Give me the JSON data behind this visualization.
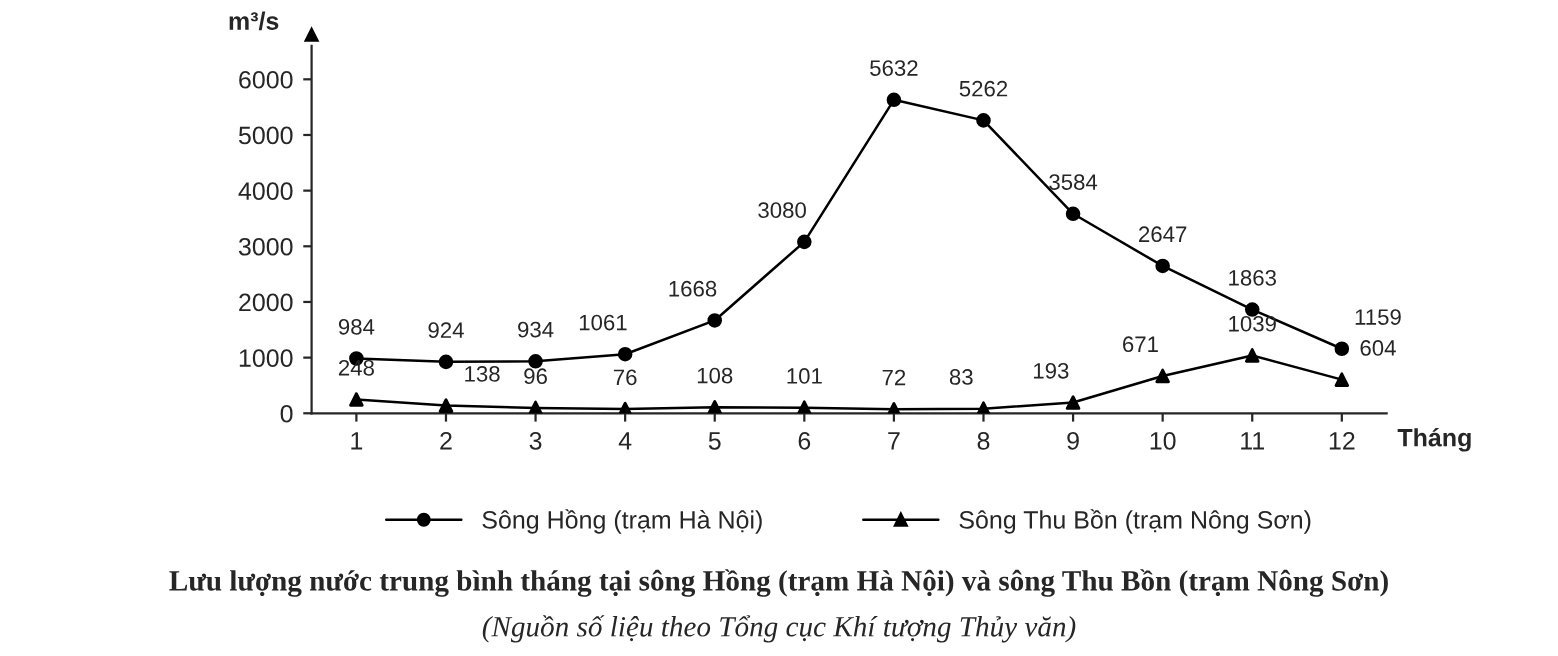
{
  "chart_data": {
    "type": "line",
    "title": "Lưu lượng nước trung bình tháng tại sông Hồng (trạm Hà Nội) và sông Thu Bồn (trạm Nông Sơn)",
    "xlabel": "Tháng",
    "ylabel": "m³/s",
    "annotations": [
      "(Nguồn số liệu theo Tổng cục Khí tượng Thủy văn)"
    ],
    "categories": [
      "1",
      "2",
      "3",
      "4",
      "5",
      "6",
      "7",
      "8",
      "9",
      "10",
      "11",
      "12"
    ],
    "series": [
      {
        "name": "Sông Hồng (trạm Hà Nội)",
        "color": "#000000",
        "marker": "circle",
        "values": [
          984,
          924,
          934,
          1061,
          1668,
          3080,
          5632,
          5262,
          3584,
          2647,
          1863,
          1159
        ]
      },
      {
        "name": "Sông Thu Bồn (trạm Nông Sơn)",
        "color": "#000000",
        "marker": "triangle",
        "values": [
          248,
          138,
          96,
          76,
          108,
          101,
          72,
          83,
          193,
          671,
          1039,
          604
        ]
      }
    ],
    "ylim": [
      0,
      6600
    ],
    "yticks": [
      0,
      1000,
      2000,
      3000,
      4000,
      5000,
      6000
    ],
    "data_labels": true,
    "grid": false,
    "legend": "bottom",
    "line_style": "solid"
  }
}
